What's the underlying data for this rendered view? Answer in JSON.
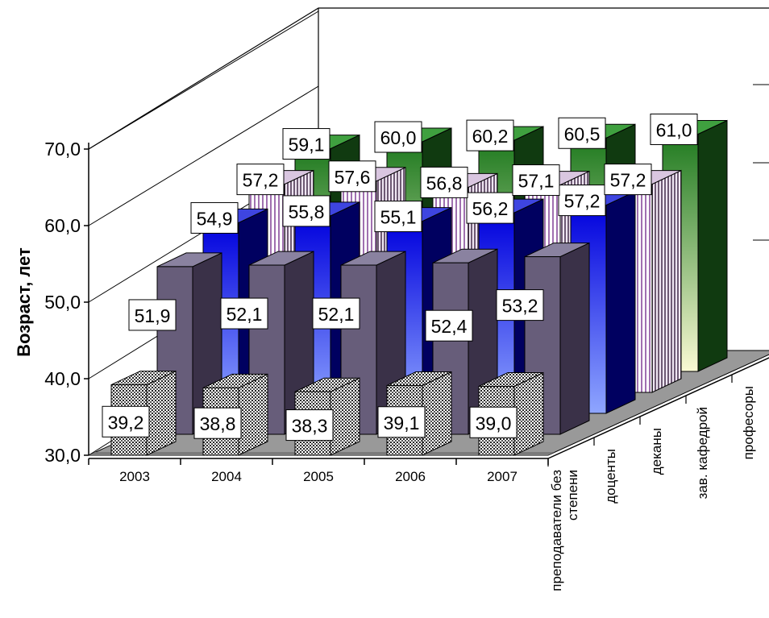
{
  "chart_data": {
    "type": "bar",
    "subtype": "3d-clustered-depth",
    "ylabel": "Возраст, лет",
    "ylim": [
      30,
      70
    ],
    "y_ticks": [
      "30,0",
      "40,0",
      "50,0",
      "60,0",
      "70,0"
    ],
    "y_tick_values": [
      30,
      40,
      50,
      60,
      70
    ],
    "categories": [
      "2003",
      "2004",
      "2005",
      "2006",
      "2007"
    ],
    "grid": true,
    "data_label_decimal": ",",
    "series": [
      {
        "name": "преподаватели без степени",
        "axis_label_lines": [
          "преподаватели без",
          "степени"
        ],
        "values": [
          39.2,
          38.8,
          38.3,
          39.1,
          39.0
        ],
        "fill": "dotted",
        "colors": {
          "front": "#e6e6e6",
          "dark": "#333333"
        }
      },
      {
        "name": "доценты",
        "axis_label_lines": [
          "доценты"
        ],
        "values": [
          51.9,
          52.1,
          52.1,
          52.4,
          53.2
        ],
        "fill": "solid",
        "colors": {
          "front": "#675d7a",
          "side": "#3a3148",
          "top": "#8a82a0"
        }
      },
      {
        "name": "деканы",
        "axis_label_lines": [
          "деканы"
        ],
        "values": [
          54.9,
          55.8,
          55.1,
          56.2,
          57.2
        ],
        "fill": "gradient",
        "colors": {
          "front_top": "#0000dd",
          "front_bottom": "#8fa6ff",
          "side": "#000060",
          "top": "#3e45e0"
        }
      },
      {
        "name": "зав. кафедрой",
        "axis_label_lines": [
          "зав. кафедрой"
        ],
        "values": [
          57.2,
          57.6,
          56.8,
          57.1,
          57.2
        ],
        "fill": "striped",
        "colors": {
          "stripe": "#a070b0",
          "base": "#ffffff",
          "side": "#6e5a74",
          "top": "#d9c6e0"
        }
      },
      {
        "name": "професоры",
        "axis_label_lines": [
          "професоры"
        ],
        "values": [
          59.1,
          60.0,
          60.2,
          60.5,
          61.0
        ],
        "fill": "gradient",
        "colors": {
          "front_top": "#1f7a1f",
          "front_bottom": "#fafad4",
          "side": "#103a10",
          "top": "#3fa03f"
        }
      }
    ],
    "data_labels": [
      [
        "39,2",
        "38,8",
        "38,3",
        "39,1",
        "39,0"
      ],
      [
        "51,9",
        "52,1",
        "52,1",
        "52,4",
        "53,2"
      ],
      [
        "54,9",
        "55,8",
        "55,1",
        "56,2",
        "57,2"
      ],
      [
        "57,2",
        "57,6",
        "56,8",
        "57,1",
        "57,2"
      ],
      [
        "59,1",
        "60,0",
        "60,2",
        "60,5",
        "61,0"
      ]
    ]
  }
}
